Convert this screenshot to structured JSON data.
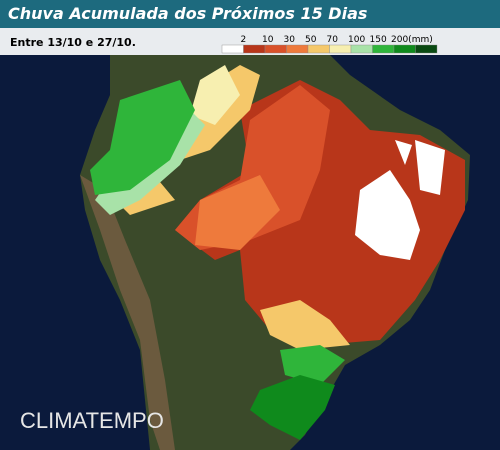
{
  "header": {
    "title": "Chuva Acumulada dos Próximos 15 Dias",
    "subtitle": "Entre 13/10 e 27/10."
  },
  "legend": {
    "labels": [
      "2",
      "10",
      "30",
      "50",
      "70",
      "100",
      "150",
      "200(mm)"
    ],
    "colors": [
      "#ffffff",
      "#b8361a",
      "#d9512a",
      "#ee7a3c",
      "#f5c86a",
      "#f7efb0",
      "#a8e2a8",
      "#2fb53a",
      "#0f8a1c",
      "#0a4a12"
    ]
  },
  "watermark": "CLIMATEMPO"
}
